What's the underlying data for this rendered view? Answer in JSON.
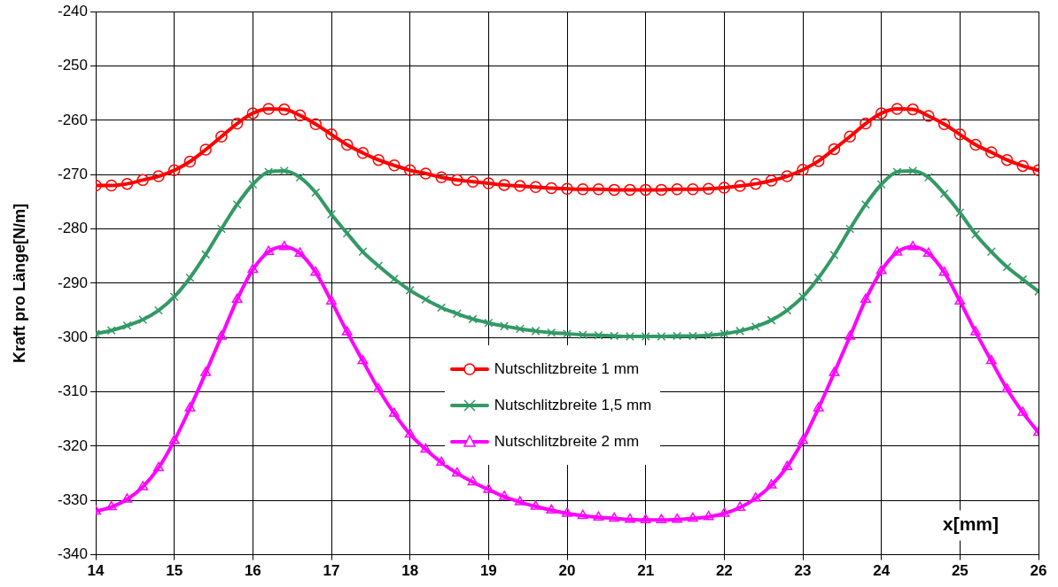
{
  "chart_data": {
    "type": "line",
    "xlabel": "x[mm]",
    "ylabel": "Kraft pro Länge[N/m]",
    "x": [
      14,
      14.2,
      14.4,
      14.6,
      14.8,
      15,
      15.2,
      15.4,
      15.6,
      15.8,
      16,
      16.2,
      16.4,
      16.6,
      16.8,
      17,
      17.2,
      17.4,
      17.6,
      17.8,
      18,
      18.2,
      18.4,
      18.6,
      18.8,
      19,
      19.2,
      19.4,
      19.6,
      19.8,
      20,
      20.2,
      20.4,
      20.6,
      20.8,
      21,
      21.2,
      21.4,
      21.6,
      21.8,
      22,
      22.2,
      22.4,
      22.6,
      22.8,
      23,
      23.2,
      23.4,
      23.6,
      23.8,
      24,
      24.2,
      24.4,
      24.6,
      24.8,
      25,
      25.2,
      25.4,
      25.6,
      25.8,
      26
    ],
    "series": [
      {
        "name": "Nutschlitzbreite 1 mm",
        "color": "#ff0000",
        "marker": "circle",
        "values": [
          -272,
          -272,
          -271.7,
          -271,
          -270.3,
          -269.2,
          -267.6,
          -265.4,
          -263,
          -260.6,
          -258.7,
          -257.9,
          -258,
          -259.1,
          -260.7,
          -262.6,
          -264.5,
          -266,
          -267.3,
          -268.3,
          -269.2,
          -269.8,
          -270.5,
          -271,
          -271.3,
          -271.6,
          -271.9,
          -272.1,
          -272.3,
          -272.5,
          -272.6,
          -272.7,
          -272.7,
          -272.8,
          -272.8,
          -272.8,
          -272.8,
          -272.7,
          -272.7,
          -272.6,
          -272.4,
          -272.1,
          -271.7,
          -271.1,
          -270.3,
          -269.1,
          -267.5,
          -265.3,
          -263,
          -260.6,
          -258.7,
          -257.9,
          -258,
          -259.2,
          -260.7,
          -262.6,
          -264.5,
          -265.9,
          -267.3,
          -268.4,
          -269.2
        ]
      },
      {
        "name": "Nutschlitzbreite 1,5 mm",
        "color": "#339966",
        "marker": "cross",
        "values": [
          -299.3,
          -298.7,
          -297.8,
          -296.7,
          -295,
          -292.5,
          -289,
          -284.7,
          -280,
          -275.5,
          -271.8,
          -269.5,
          -269.3,
          -270.5,
          -273.3,
          -277.3,
          -280.8,
          -284.2,
          -286.8,
          -289.2,
          -291.3,
          -293,
          -294.5,
          -295.6,
          -296.6,
          -297.3,
          -297.9,
          -298.4,
          -298.8,
          -299.1,
          -299.3,
          -299.5,
          -299.6,
          -299.7,
          -299.8,
          -299.8,
          -299.8,
          -299.7,
          -299.7,
          -299.6,
          -299.3,
          -298.8,
          -298,
          -296.8,
          -295,
          -292.5,
          -289,
          -284.8,
          -280,
          -275.5,
          -271.8,
          -269.5,
          -269.3,
          -270.5,
          -273.5,
          -277,
          -281,
          -284.2,
          -287,
          -289.3,
          -291.5
        ]
      },
      {
        "name": "Nutschlitzbreite 2 mm",
        "color": "#ff00ff",
        "marker": "triangle",
        "values": [
          -332,
          -331.2,
          -329.8,
          -327.5,
          -324,
          -319,
          -313,
          -306.5,
          -299.8,
          -293,
          -287.5,
          -284.2,
          -283.3,
          -284.5,
          -288,
          -293.3,
          -299,
          -304.3,
          -309.5,
          -314,
          -317.8,
          -320.6,
          -323,
          -325,
          -326.6,
          -328,
          -329.3,
          -330.3,
          -331.1,
          -331.8,
          -332.4,
          -332.8,
          -333.1,
          -333.3,
          -333.5,
          -333.6,
          -333.6,
          -333.5,
          -333.3,
          -333,
          -332.4,
          -331.3,
          -329.6,
          -327.2,
          -323.8,
          -319,
          -313,
          -306.5,
          -299.8,
          -293,
          -287.7,
          -284.3,
          -283.3,
          -284.5,
          -288,
          -293.3,
          -299,
          -304.3,
          -309.5,
          -313.8,
          -317.5
        ]
      }
    ],
    "xlim": [
      14,
      26
    ],
    "xticks": [
      14,
      15,
      16,
      17,
      18,
      19,
      20,
      21,
      22,
      23,
      24,
      25,
      26
    ],
    "ylim": [
      -340,
      -240
    ],
    "yticks": [
      -340,
      -330,
      -320,
      -310,
      -300,
      -290,
      -280,
      -270,
      -260,
      -250,
      -240
    ],
    "grid": true,
    "legend": "bottom",
    "line_style": "solid"
  }
}
